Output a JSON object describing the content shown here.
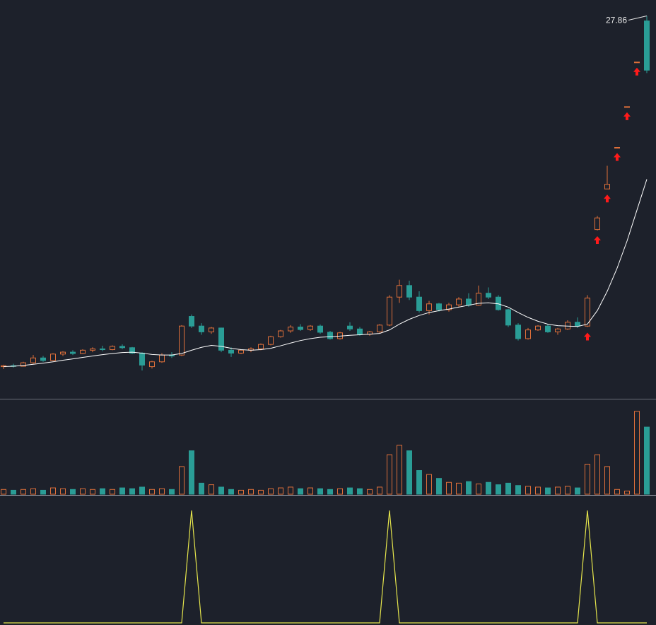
{
  "chart_data": [
    {
      "type": "candlestick",
      "open": [
        9.7,
        9.75,
        9.72,
        9.9,
        10.15,
        10.02,
        10.35,
        10.45,
        10.38,
        10.55,
        10.62,
        10.58,
        10.75,
        10.68,
        10.4,
        9.7,
        9.95,
        10.3,
        10.3,
        12.3,
        11.8,
        11.5,
        11.7,
        10.55,
        10.4,
        10.55,
        10.62,
        10.85,
        11.25,
        11.55,
        11.75,
        11.62,
        11.8,
        11.48,
        11.15,
        11.8,
        11.65,
        11.38,
        11.5,
        11.85,
        13.3,
        13.9,
        13.3,
        12.6,
        12.95,
        12.65,
        12.9,
        13.2,
        12.88,
        13.5,
        13.3,
        12.65,
        11.85,
        11.15,
        11.6,
        11.8,
        11.5,
        11.65,
        12.0,
        11.8,
        16.8,
        18.9,
        21.05,
        23.16,
        25.47,
        27.6
      ],
      "high": [
        9.8,
        9.85,
        9.95,
        10.3,
        10.25,
        10.4,
        10.5,
        10.55,
        10.6,
        10.7,
        10.78,
        10.8,
        10.85,
        10.72,
        10.45,
        10.0,
        10.4,
        10.45,
        11.85,
        12.4,
        11.95,
        11.75,
        11.72,
        10.7,
        10.6,
        10.7,
        10.9,
        11.3,
        11.6,
        11.85,
        11.9,
        11.85,
        11.88,
        11.55,
        11.5,
        12.0,
        11.75,
        11.55,
        11.9,
        13.4,
        14.2,
        14.15,
        13.6,
        13.1,
        13.0,
        13.0,
        13.3,
        13.5,
        13.9,
        13.8,
        13.4,
        12.7,
        11.95,
        11.7,
        11.85,
        11.9,
        11.7,
        12.1,
        12.25,
        13.4,
        17.5,
        20.1,
        21.05,
        23.16,
        25.47,
        27.86
      ],
      "low": [
        9.58,
        9.65,
        9.7,
        9.85,
        9.95,
        10.0,
        10.25,
        10.3,
        10.35,
        10.45,
        10.5,
        10.55,
        10.6,
        10.35,
        9.5,
        9.6,
        9.9,
        10.15,
        10.25,
        11.7,
        11.35,
        11.4,
        10.45,
        10.2,
        10.35,
        10.45,
        10.55,
        10.8,
        11.2,
        11.45,
        11.55,
        11.55,
        11.4,
        11.1,
        11.1,
        11.55,
        11.3,
        11.3,
        11.45,
        11.8,
        13.0,
        13.15,
        12.5,
        12.4,
        12.55,
        12.55,
        12.8,
        12.8,
        12.85,
        13.2,
        12.6,
        11.75,
        11.05,
        11.1,
        11.55,
        11.45,
        11.35,
        11.6,
        11.7,
        11.75,
        16.75,
        18.9,
        21.05,
        23.16,
        25.47,
        24.9
      ],
      "close": [
        9.75,
        9.72,
        9.9,
        10.15,
        10.02,
        10.35,
        10.45,
        10.38,
        10.55,
        10.62,
        10.58,
        10.75,
        10.68,
        10.4,
        9.78,
        9.95,
        10.3,
        10.25,
        11.8,
        11.8,
        11.5,
        11.7,
        10.55,
        10.4,
        10.55,
        10.62,
        10.85,
        11.25,
        11.55,
        11.75,
        11.62,
        11.8,
        11.48,
        11.15,
        11.45,
        11.65,
        11.38,
        11.5,
        11.85,
        13.3,
        13.9,
        13.3,
        12.6,
        12.95,
        12.65,
        12.9,
        13.2,
        12.88,
        13.5,
        13.3,
        12.65,
        11.85,
        11.15,
        11.6,
        11.8,
        11.5,
        11.65,
        12.0,
        11.8,
        13.25,
        17.4,
        19.14,
        21.05,
        23.16,
        25.47,
        25.05
      ],
      "ma": [
        9.7,
        9.72,
        9.76,
        9.82,
        9.88,
        9.95,
        10.03,
        10.1,
        10.18,
        10.25,
        10.32,
        10.38,
        10.43,
        10.45,
        10.4,
        10.33,
        10.3,
        10.3,
        10.38,
        10.55,
        10.7,
        10.8,
        10.75,
        10.65,
        10.58,
        10.55,
        10.58,
        10.65,
        10.78,
        10.92,
        11.05,
        11.15,
        11.22,
        11.25,
        11.28,
        11.32,
        11.35,
        11.38,
        11.42,
        11.6,
        11.9,
        12.15,
        12.35,
        12.5,
        12.6,
        12.68,
        12.78,
        12.88,
        12.98,
        13.0,
        12.95,
        12.78,
        12.5,
        12.25,
        12.05,
        11.9,
        11.82,
        11.8,
        11.78,
        11.9,
        12.6,
        13.6,
        14.8,
        16.2,
        17.8,
        19.4
      ],
      "up_color": "#e0703a",
      "down_color": "#2a9d96",
      "ma_color": "#ffffff",
      "signals": [
        59,
        60,
        61,
        62,
        63,
        64
      ],
      "signal_color": "#ff1a1a",
      "ylim": [
        8,
        28.5
      ]
    },
    {
      "type": "bar",
      "values": [
        6,
        5,
        6,
        7,
        5,
        8,
        7,
        6,
        7,
        6,
        7,
        6,
        8,
        7,
        9,
        6,
        7,
        6,
        35,
        55,
        14,
        12,
        9,
        6,
        5,
        6,
        5,
        7,
        8,
        9,
        7,
        8,
        7,
        6,
        7,
        8,
        7,
        6,
        9,
        50,
        62,
        55,
        30,
        25,
        20,
        15,
        14,
        16,
        13,
        15,
        12,
        14,
        11,
        10,
        9,
        8,
        9,
        10,
        8,
        38,
        50,
        35,
        6,
        4,
        105,
        85
      ],
      "ylim": [
        0,
        120
      ]
    },
    {
      "type": "line",
      "values": [
        0,
        0,
        0,
        0,
        0,
        0,
        0,
        0,
        0,
        0,
        0,
        0,
        0,
        0,
        0,
        0,
        0,
        0,
        0,
        1,
        0,
        0,
        0,
        0,
        0,
        0,
        0,
        0,
        0,
        0,
        0,
        0,
        0,
        0,
        0,
        0,
        0,
        0,
        0,
        1,
        0,
        0,
        0,
        0,
        0,
        0,
        0,
        0,
        0,
        0,
        0,
        0,
        0,
        0,
        0,
        0,
        0,
        0,
        0,
        1,
        0,
        0,
        0,
        0,
        0,
        0
      ],
      "color": "#e6e64c",
      "ylim": [
        0,
        1
      ]
    }
  ]
}
